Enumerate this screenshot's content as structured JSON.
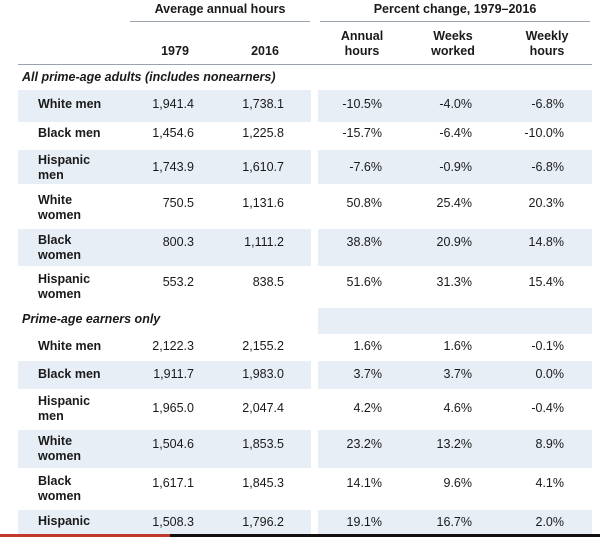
{
  "headers": {
    "group_avg": "Average annual hours",
    "group_pct": "Percent change, 1979–2016",
    "y1979": "1979",
    "y2016": "2016",
    "annual_l1": "Annual",
    "annual_l2": "hours",
    "weeks_l1": "Weeks",
    "weeks_l2": "worked",
    "weekly_l1": "Weekly",
    "weekly_l2": "hours"
  },
  "section1": "All prime-age adults (includes nonearners)",
  "section2": "Prime-age earners only",
  "rows1": [
    {
      "l1": "White men",
      "l2": "",
      "y1979": "1,941.4",
      "y2016": "1,738.1",
      "annual": "-10.5%",
      "weeks": "-4.0%",
      "weekly": "-6.8%"
    },
    {
      "l1": "Black men",
      "l2": "",
      "y1979": "1,454.6",
      "y2016": "1,225.8",
      "annual": "-15.7%",
      "weeks": "-6.4%",
      "weekly": "-10.0%"
    },
    {
      "l1": "Hispanic",
      "l2": "men",
      "y1979": "1,743.9",
      "y2016": "1,610.7",
      "annual": "-7.6%",
      "weeks": "-0.9%",
      "weekly": "-6.8%"
    },
    {
      "l1": "White",
      "l2": "women",
      "y1979": "750.5",
      "y2016": "1,131.6",
      "annual": "50.8%",
      "weeks": "25.4%",
      "weekly": "20.3%"
    },
    {
      "l1": "Black",
      "l2": "women",
      "y1979": "800.3",
      "y2016": "1,111.2",
      "annual": "38.8%",
      "weeks": "20.9%",
      "weekly": "14.8%"
    },
    {
      "l1": "Hispanic",
      "l2": "women",
      "y1979": "553.2",
      "y2016": "838.5",
      "annual": "51.6%",
      "weeks": "31.3%",
      "weekly": "15.4%"
    }
  ],
  "rows2": [
    {
      "l1": "White men",
      "l2": "",
      "y1979": "2,122.3",
      "y2016": "2,155.2",
      "annual": "1.6%",
      "weeks": "1.6%",
      "weekly": "-0.1%"
    },
    {
      "l1": "Black men",
      "l2": "",
      "y1979": "1,911.7",
      "y2016": "1,983.0",
      "annual": "3.7%",
      "weeks": "3.7%",
      "weekly": "0.0%"
    },
    {
      "l1": "Hispanic",
      "l2": "men",
      "y1979": "1,965.0",
      "y2016": "2,047.4",
      "annual": "4.2%",
      "weeks": "4.6%",
      "weekly": "-0.4%"
    },
    {
      "l1": "White",
      "l2": "women",
      "y1979": "1,504.6",
      "y2016": "1,853.5",
      "annual": "23.2%",
      "weeks": "13.2%",
      "weekly": "8.9%"
    },
    {
      "l1": "Black",
      "l2": "women",
      "y1979": "1,617.1",
      "y2016": "1,845.3",
      "annual": "14.1%",
      "weeks": "9.6%",
      "weekly": "4.1%"
    },
    {
      "l1": "Hispanic",
      "l2": "",
      "y1979": "1,508.3",
      "y2016": "1,796.2",
      "annual": "19.1%",
      "weeks": "16.7%",
      "weekly": "2.0%"
    }
  ],
  "colors": {
    "shade": "#e8eef6",
    "text": "#1a1a1a",
    "rule": "#9aa3ad"
  }
}
